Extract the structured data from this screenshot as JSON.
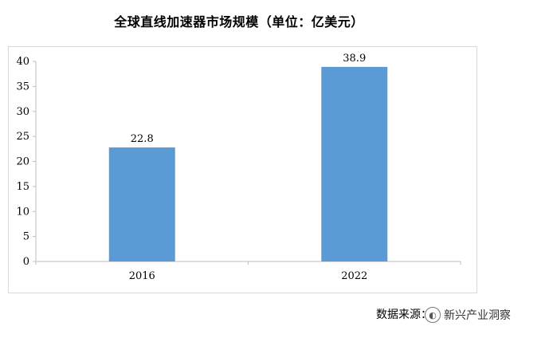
{
  "chart_data": {
    "type": "bar",
    "title": "全球直线加速器市场规模（单位：亿美元）",
    "categories": [
      "2016",
      "2022"
    ],
    "values": [
      22.8,
      38.9
    ],
    "value_labels": [
      "22.8",
      "38.9"
    ],
    "xlabel": "",
    "ylabel": "",
    "ylim": [
      0,
      40
    ],
    "yticks": [
      0,
      5,
      10,
      15,
      20,
      25,
      30,
      35,
      40
    ],
    "grid": false,
    "bar_color": "#5b9bd5"
  },
  "source_text": "数据来源：",
  "watermark": {
    "icon": "wechat-icon",
    "text": "新兴产业洞察"
  }
}
